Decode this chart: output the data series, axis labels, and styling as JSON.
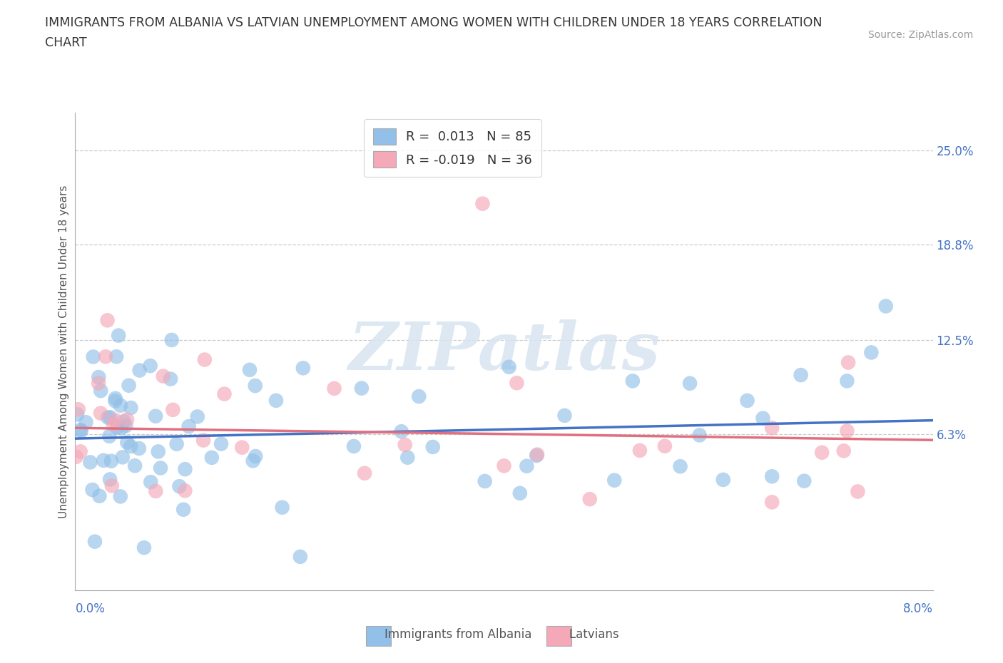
{
  "title_line1": "IMMIGRANTS FROM ALBANIA VS LATVIAN UNEMPLOYMENT AMONG WOMEN WITH CHILDREN UNDER 18 YEARS CORRELATION",
  "title_line2": "CHART",
  "source": "Source: ZipAtlas.com",
  "ylabel_labels": [
    "25.0%",
    "18.8%",
    "12.5%",
    "6.3%"
  ],
  "ylabel_values": [
    0.25,
    0.188,
    0.125,
    0.063
  ],
  "xmin": 0.0,
  "xmax": 0.08,
  "ymin": -0.04,
  "ymax": 0.275,
  "legend_1_label": "R =  0.013   N = 85",
  "legend_2_label": "R = -0.019   N = 36",
  "color_blue": "#92C0E8",
  "color_pink": "#F4A8B8",
  "color_blue_line": "#4472C4",
  "color_pink_line": "#E07080",
  "watermark": "ZIPatlas",
  "blue_R": 0.013,
  "pink_R": -0.019,
  "blue_intercept": 0.06,
  "pink_intercept": 0.067,
  "blue_slope": 0.15,
  "pink_slope": -0.1
}
